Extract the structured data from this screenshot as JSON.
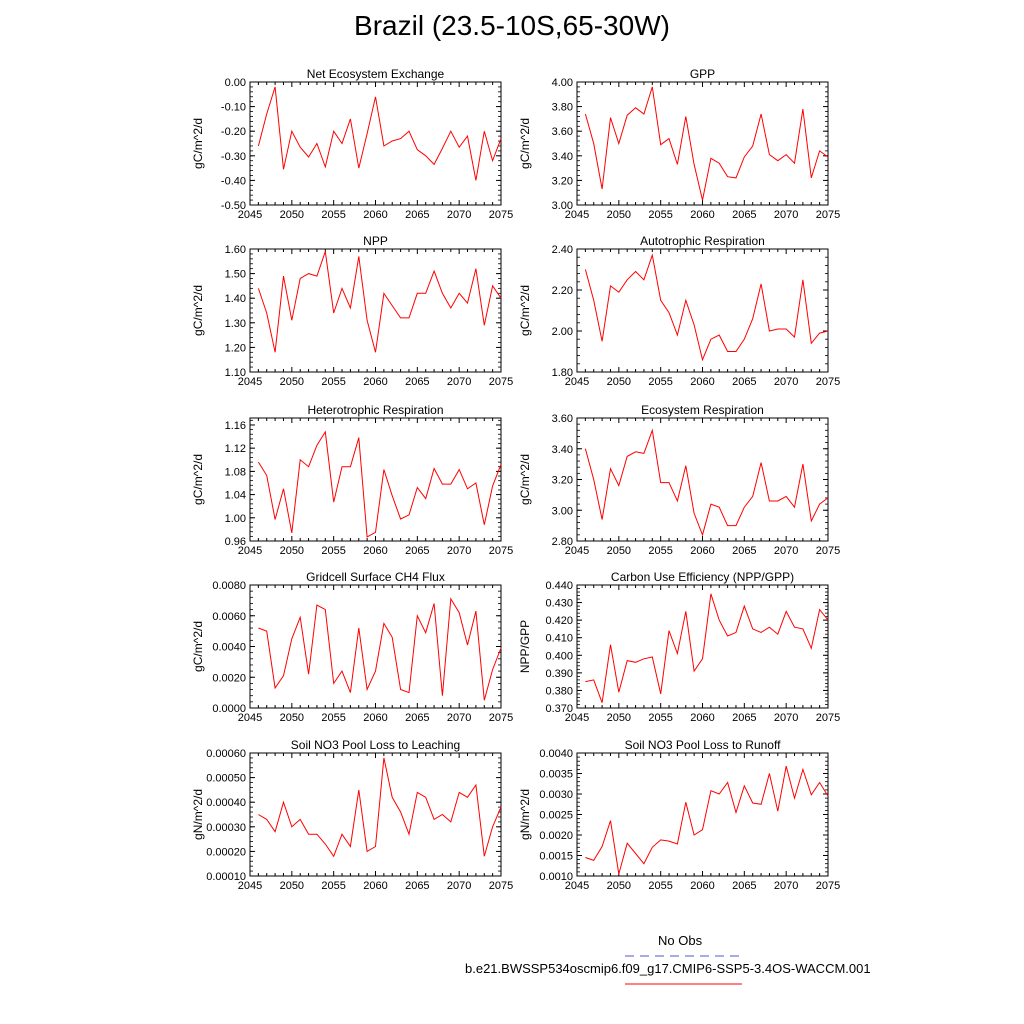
{
  "title": "Brazil (23.5-10S,65-30W)",
  "legend": {
    "obs_label": "No Obs",
    "obs_color": "#5555cc",
    "model_label": "b.e21.BWSSP534oscmip6.f09_g17.CMIP6-SSP5-3.4OS-WACCM.001",
    "model_color": "#ff0000"
  },
  "chart_data": [
    {
      "type": "line",
      "title": "Net Ecosystem Exchange",
      "ylabel": "gC/m^2/d",
      "xlim": [
        2045,
        2075
      ],
      "ylim": [
        -0.5,
        0.0
      ],
      "xticks": [
        2045,
        2050,
        2055,
        2060,
        2065,
        2070,
        2075
      ],
      "xtick_labels": [
        "2045",
        "2050",
        "2055",
        "2060",
        "2065",
        "2070",
        "2075"
      ],
      "yticks": [
        0.0,
        -0.1,
        -0.2,
        -0.3,
        -0.4,
        -0.5
      ],
      "ytick_labels": [
        "0.00",
        "-0.10",
        "-0.20",
        "-0.30",
        "-0.40",
        "-0.50"
      ],
      "x": [
        2046,
        2047,
        2048,
        2049,
        2050,
        2051,
        2052,
        2053,
        2054,
        2055,
        2056,
        2057,
        2058,
        2059,
        2060,
        2061,
        2062,
        2063,
        2064,
        2065,
        2066,
        2067,
        2068,
        2069,
        2070,
        2071,
        2072,
        2073,
        2074,
        2075
      ],
      "values": [
        -0.26,
        -0.13,
        -0.02,
        -0.355,
        -0.2,
        -0.265,
        -0.305,
        -0.25,
        -0.345,
        -0.2,
        -0.25,
        -0.15,
        -0.35,
        -0.21,
        -0.06,
        -0.26,
        -0.24,
        -0.23,
        -0.2,
        -0.275,
        -0.3,
        -0.335,
        -0.27,
        -0.2,
        -0.265,
        -0.22,
        -0.4,
        -0.2,
        -0.32,
        -0.23
      ]
    },
    {
      "type": "line",
      "title": "GPP",
      "ylabel": "gC/m^2/d",
      "xlim": [
        2045,
        2075
      ],
      "ylim": [
        3.0,
        4.0
      ],
      "xticks": [
        2045,
        2050,
        2055,
        2060,
        2065,
        2070,
        2075
      ],
      "xtick_labels": [
        "2045",
        "2050",
        "2055",
        "2060",
        "2065",
        "2070",
        "2075"
      ],
      "yticks": [
        4.0,
        3.8,
        3.6,
        3.4,
        3.2,
        3.0
      ],
      "ytick_labels": [
        "4.00",
        "3.80",
        "3.60",
        "3.40",
        "3.20",
        "3.00"
      ],
      "x": [
        2046,
        2047,
        2048,
        2049,
        2050,
        2051,
        2052,
        2053,
        2054,
        2055,
        2056,
        2057,
        2058,
        2059,
        2060,
        2061,
        2062,
        2063,
        2064,
        2065,
        2066,
        2067,
        2068,
        2069,
        2070,
        2071,
        2072,
        2073,
        2074,
        2075
      ],
      "values": [
        3.74,
        3.5,
        3.13,
        3.71,
        3.5,
        3.73,
        3.79,
        3.74,
        3.96,
        3.49,
        3.54,
        3.33,
        3.72,
        3.33,
        3.04,
        3.38,
        3.34,
        3.23,
        3.22,
        3.39,
        3.48,
        3.74,
        3.41,
        3.36,
        3.41,
        3.34,
        3.78,
        3.22,
        3.44,
        3.39
      ]
    },
    {
      "type": "line",
      "title": "NPP",
      "ylabel": "gC/m^2/d",
      "xlim": [
        2045,
        2075
      ],
      "ylim": [
        1.1,
        1.6
      ],
      "xticks": [
        2045,
        2050,
        2055,
        2060,
        2065,
        2070,
        2075
      ],
      "xtick_labels": [
        "2045",
        "2050",
        "2055",
        "2060",
        "2065",
        "2070",
        "2075"
      ],
      "yticks": [
        1.6,
        1.5,
        1.4,
        1.3,
        1.2,
        1.1
      ],
      "ytick_labels": [
        "1.60",
        "1.50",
        "1.40",
        "1.30",
        "1.20",
        "1.10"
      ],
      "x": [
        2046,
        2047,
        2048,
        2049,
        2050,
        2051,
        2052,
        2053,
        2054,
        2055,
        2056,
        2057,
        2058,
        2059,
        2060,
        2061,
        2062,
        2063,
        2064,
        2065,
        2066,
        2067,
        2068,
        2069,
        2070,
        2071,
        2072,
        2073,
        2074,
        2075
      ],
      "values": [
        1.44,
        1.34,
        1.18,
        1.49,
        1.31,
        1.48,
        1.5,
        1.49,
        1.59,
        1.34,
        1.44,
        1.36,
        1.57,
        1.31,
        1.18,
        1.42,
        1.37,
        1.32,
        1.32,
        1.42,
        1.42,
        1.51,
        1.42,
        1.36,
        1.42,
        1.38,
        1.52,
        1.29,
        1.45,
        1.4
      ]
    },
    {
      "type": "line",
      "title": "Autotrophic Respiration",
      "ylabel": "gC/m^2/d",
      "xlim": [
        2045,
        2075
      ],
      "ylim": [
        1.8,
        2.4
      ],
      "xticks": [
        2045,
        2050,
        2055,
        2060,
        2065,
        2070,
        2075
      ],
      "xtick_labels": [
        "2045",
        "2050",
        "2055",
        "2060",
        "2065",
        "2070",
        "2075"
      ],
      "yticks": [
        2.4,
        2.2,
        2.0,
        1.8
      ],
      "ytick_labels": [
        "2.40",
        "2.20",
        "2.00",
        "1.80"
      ],
      "x": [
        2046,
        2047,
        2048,
        2049,
        2050,
        2051,
        2052,
        2053,
        2054,
        2055,
        2056,
        2057,
        2058,
        2059,
        2060,
        2061,
        2062,
        2063,
        2064,
        2065,
        2066,
        2067,
        2068,
        2069,
        2070,
        2071,
        2072,
        2073,
        2074,
        2075
      ],
      "values": [
        2.3,
        2.15,
        1.95,
        2.22,
        2.19,
        2.25,
        2.29,
        2.25,
        2.37,
        2.15,
        2.09,
        1.98,
        2.15,
        2.03,
        1.86,
        1.96,
        1.98,
        1.9,
        1.9,
        1.96,
        2.06,
        2.23,
        2.0,
        2.01,
        2.01,
        1.97,
        2.25,
        1.94,
        1.99,
        2.0
      ]
    },
    {
      "type": "line",
      "title": "Heterotrophic Respiration",
      "ylabel": "gC/m^2/d",
      "xlim": [
        2045,
        2075
      ],
      "ylim": [
        0.96,
        1.172
      ],
      "xticks": [
        2045,
        2050,
        2055,
        2060,
        2065,
        2070,
        2075
      ],
      "xtick_labels": [
        "2045",
        "2050",
        "2055",
        "2060",
        "2065",
        "2070",
        "2075"
      ],
      "yticks": [
        1.16,
        1.12,
        1.08,
        1.04,
        1.0,
        0.96
      ],
      "ytick_labels": [
        "1.16",
        "1.12",
        "1.08",
        "1.04",
        "1.00",
        "0.96"
      ],
      "x": [
        2046,
        2047,
        2048,
        2049,
        2050,
        2051,
        2052,
        2053,
        2054,
        2055,
        2056,
        2057,
        2058,
        2059,
        2060,
        2061,
        2062,
        2063,
        2064,
        2065,
        2066,
        2067,
        2068,
        2069,
        2070,
        2071,
        2072,
        2073,
        2074,
        2075
      ],
      "values": [
        1.096,
        1.073,
        0.997,
        1.05,
        0.974,
        1.1,
        1.088,
        1.125,
        1.148,
        1.027,
        1.088,
        1.088,
        1.138,
        0.967,
        0.975,
        1.083,
        1.038,
        0.998,
        1.005,
        1.052,
        1.033,
        1.085,
        1.058,
        1.058,
        1.083,
        1.05,
        1.06,
        0.988,
        1.055,
        1.092
      ]
    },
    {
      "type": "line",
      "title": "Ecosystem Respiration",
      "ylabel": "gC/m^2/d",
      "xlim": [
        2045,
        2075
      ],
      "ylim": [
        2.8,
        3.6
      ],
      "xticks": [
        2045,
        2050,
        2055,
        2060,
        2065,
        2070,
        2075
      ],
      "xtick_labels": [
        "2045",
        "2050",
        "2055",
        "2060",
        "2065",
        "2070",
        "2075"
      ],
      "yticks": [
        3.6,
        3.4,
        3.2,
        3.0,
        2.8
      ],
      "ytick_labels": [
        "3.60",
        "3.40",
        "3.20",
        "3.00",
        "2.80"
      ],
      "x": [
        2046,
        2047,
        2048,
        2049,
        2050,
        2051,
        2052,
        2053,
        2054,
        2055,
        2056,
        2057,
        2058,
        2059,
        2060,
        2061,
        2062,
        2063,
        2064,
        2065,
        2066,
        2067,
        2068,
        2069,
        2070,
        2071,
        2072,
        2073,
        2074,
        2075
      ],
      "values": [
        3.4,
        3.2,
        2.94,
        3.27,
        3.16,
        3.35,
        3.38,
        3.37,
        3.52,
        3.18,
        3.18,
        3.06,
        3.29,
        2.98,
        2.84,
        3.04,
        3.02,
        2.9,
        2.9,
        3.02,
        3.09,
        3.31,
        3.06,
        3.06,
        3.09,
        3.02,
        3.3,
        2.93,
        3.04,
        3.08
      ]
    },
    {
      "type": "line",
      "title": "Gridcell Surface CH4 Flux",
      "ylabel": "gC/m^2/d",
      "xlim": [
        2045,
        2075
      ],
      "ylim": [
        0.0,
        0.008
      ],
      "xticks": [
        2045,
        2050,
        2055,
        2060,
        2065,
        2070,
        2075
      ],
      "xtick_labels": [
        "2045",
        "2050",
        "2055",
        "2060",
        "2065",
        "2070",
        "2075"
      ],
      "yticks": [
        0.008,
        0.006,
        0.004,
        0.002,
        0.0
      ],
      "ytick_labels": [
        "0.0080",
        "0.0060",
        "0.0040",
        "0.0020",
        "0.0000"
      ],
      "x": [
        2046,
        2047,
        2048,
        2049,
        2050,
        2051,
        2052,
        2053,
        2054,
        2055,
        2056,
        2057,
        2058,
        2059,
        2060,
        2061,
        2062,
        2063,
        2064,
        2065,
        2066,
        2067,
        2068,
        2069,
        2070,
        2071,
        2072,
        2073,
        2074,
        2075
      ],
      "values": [
        0.0052,
        0.005,
        0.0013,
        0.0021,
        0.0045,
        0.0059,
        0.0022,
        0.0067,
        0.0064,
        0.0016,
        0.0024,
        0.001,
        0.0052,
        0.0012,
        0.0024,
        0.0055,
        0.0046,
        0.0012,
        0.001,
        0.006,
        0.0049,
        0.0068,
        0.0008,
        0.0071,
        0.0062,
        0.0041,
        0.0063,
        0.0005,
        0.0025,
        0.0039
      ]
    },
    {
      "type": "line",
      "title": "Carbon Use Efficiency (NPP/GPP)",
      "ylabel": "NPP/GPP",
      "xlim": [
        2045,
        2075
      ],
      "ylim": [
        0.37,
        0.44
      ],
      "xticks": [
        2045,
        2050,
        2055,
        2060,
        2065,
        2070,
        2075
      ],
      "xtick_labels": [
        "2045",
        "2050",
        "2055",
        "2060",
        "2065",
        "2070",
        "2075"
      ],
      "yticks": [
        0.44,
        0.43,
        0.42,
        0.41,
        0.4,
        0.39,
        0.38,
        0.37
      ],
      "ytick_labels": [
        "0.440",
        "0.430",
        "0.420",
        "0.410",
        "0.400",
        "0.390",
        "0.380",
        "0.370"
      ],
      "x": [
        2046,
        2047,
        2048,
        2049,
        2050,
        2051,
        2052,
        2053,
        2054,
        2055,
        2056,
        2057,
        2058,
        2059,
        2060,
        2061,
        2062,
        2063,
        2064,
        2065,
        2066,
        2067,
        2068,
        2069,
        2070,
        2071,
        2072,
        2073,
        2074,
        2075
      ],
      "values": [
        0.385,
        0.386,
        0.373,
        0.406,
        0.379,
        0.397,
        0.396,
        0.398,
        0.399,
        0.378,
        0.414,
        0.401,
        0.425,
        0.391,
        0.398,
        0.435,
        0.42,
        0.411,
        0.413,
        0.428,
        0.415,
        0.413,
        0.416,
        0.412,
        0.425,
        0.416,
        0.415,
        0.404,
        0.426,
        0.42
      ]
    },
    {
      "type": "line",
      "title": "Soil NO3 Pool Loss to Leaching",
      "ylabel": "gN/m^2/d",
      "xlim": [
        2045,
        2075
      ],
      "ylim": [
        0.0001,
        0.0006
      ],
      "xticks": [
        2045,
        2050,
        2055,
        2060,
        2065,
        2070,
        2075
      ],
      "xtick_labels": [
        "2045",
        "2050",
        "2055",
        "2060",
        "2065",
        "2070",
        "2075"
      ],
      "yticks": [
        0.0006,
        0.0005,
        0.0004,
        0.0003,
        0.0002,
        0.0001
      ],
      "ytick_labels": [
        "0.00060",
        "0.00050",
        "0.00040",
        "0.00030",
        "0.00020",
        "0.00010"
      ],
      "x": [
        2046,
        2047,
        2048,
        2049,
        2050,
        2051,
        2052,
        2053,
        2054,
        2055,
        2056,
        2057,
        2058,
        2059,
        2060,
        2061,
        2062,
        2063,
        2064,
        2065,
        2066,
        2067,
        2068,
        2069,
        2070,
        2071,
        2072,
        2073,
        2074,
        2075
      ],
      "values": [
        0.00035,
        0.00033,
        0.00028,
        0.0004,
        0.0003,
        0.00033,
        0.00027,
        0.00027,
        0.00023,
        0.00018,
        0.00027,
        0.00022,
        0.00045,
        0.0002,
        0.00022,
        0.00058,
        0.00042,
        0.00036,
        0.00027,
        0.00044,
        0.00042,
        0.00033,
        0.00035,
        0.00032,
        0.00044,
        0.00042,
        0.00047,
        0.00018,
        0.0003,
        0.00038
      ]
    },
    {
      "type": "line",
      "title": "Soil NO3 Pool Loss to Runoff",
      "ylabel": "gN/m^2/d",
      "xlim": [
        2045,
        2075
      ],
      "ylim": [
        0.001,
        0.004
      ],
      "xticks": [
        2045,
        2050,
        2055,
        2060,
        2065,
        2070,
        2075
      ],
      "xtick_labels": [
        "2045",
        "2050",
        "2055",
        "2060",
        "2065",
        "2070",
        "2075"
      ],
      "yticks": [
        0.004,
        0.0035,
        0.003,
        0.0025,
        0.002,
        0.0015,
        0.001
      ],
      "ytick_labels": [
        "0.0040",
        "0.0035",
        "0.0030",
        "0.0025",
        "0.0020",
        "0.0015",
        "0.0010"
      ],
      "x": [
        2046,
        2047,
        2048,
        2049,
        2050,
        2051,
        2052,
        2053,
        2054,
        2055,
        2056,
        2057,
        2058,
        2059,
        2060,
        2061,
        2062,
        2063,
        2064,
        2065,
        2066,
        2067,
        2068,
        2069,
        2070,
        2071,
        2072,
        2073,
        2074,
        2075
      ],
      "values": [
        0.00145,
        0.00138,
        0.00172,
        0.00235,
        0.00105,
        0.0018,
        0.00155,
        0.0013,
        0.0017,
        0.00188,
        0.00185,
        0.00178,
        0.0028,
        0.002,
        0.00213,
        0.00308,
        0.003,
        0.00328,
        0.00255,
        0.0032,
        0.00278,
        0.00275,
        0.0035,
        0.00258,
        0.00368,
        0.0029,
        0.0036,
        0.00298,
        0.00328,
        0.00295
      ]
    }
  ]
}
